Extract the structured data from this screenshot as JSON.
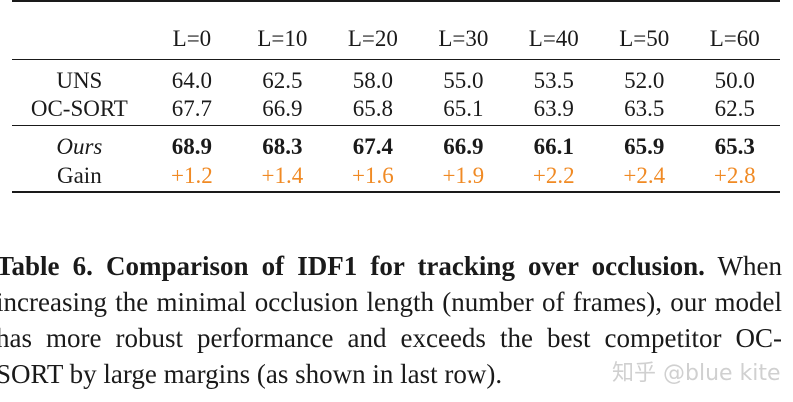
{
  "table": {
    "columns": [
      "L=0",
      "L=10",
      "L=20",
      "L=30",
      "L=40",
      "L=50",
      "L=60"
    ],
    "rows": [
      {
        "label": "UNS",
        "values": [
          "64.0",
          "62.5",
          "58.0",
          "55.0",
          "53.5",
          "52.0",
          "50.0"
        ]
      },
      {
        "label": "OC-SORT",
        "values": [
          "67.7",
          "66.9",
          "65.8",
          "65.1",
          "63.9",
          "63.5",
          "62.5"
        ]
      },
      {
        "label": "Ours",
        "values": [
          "68.9",
          "68.3",
          "67.4",
          "66.9",
          "66.1",
          "65.9",
          "65.3"
        ]
      },
      {
        "label": "Gain",
        "values": [
          "+1.2",
          "+1.4",
          "+1.6",
          "+1.9",
          "+2.2",
          "+2.4",
          "+2.8"
        ]
      }
    ],
    "gain_color": "#f08a24"
  },
  "caption": {
    "label": "Table 6.",
    "title": "Comparison of IDF1 for tracking over occlusion.",
    "body": "When increasing the minimal occlusion length (number of frames), our model has more robust performance and exceeds the best competitor OC-SORT by large margins (as shown in last row)."
  },
  "watermark": "知乎 @blue kite"
}
